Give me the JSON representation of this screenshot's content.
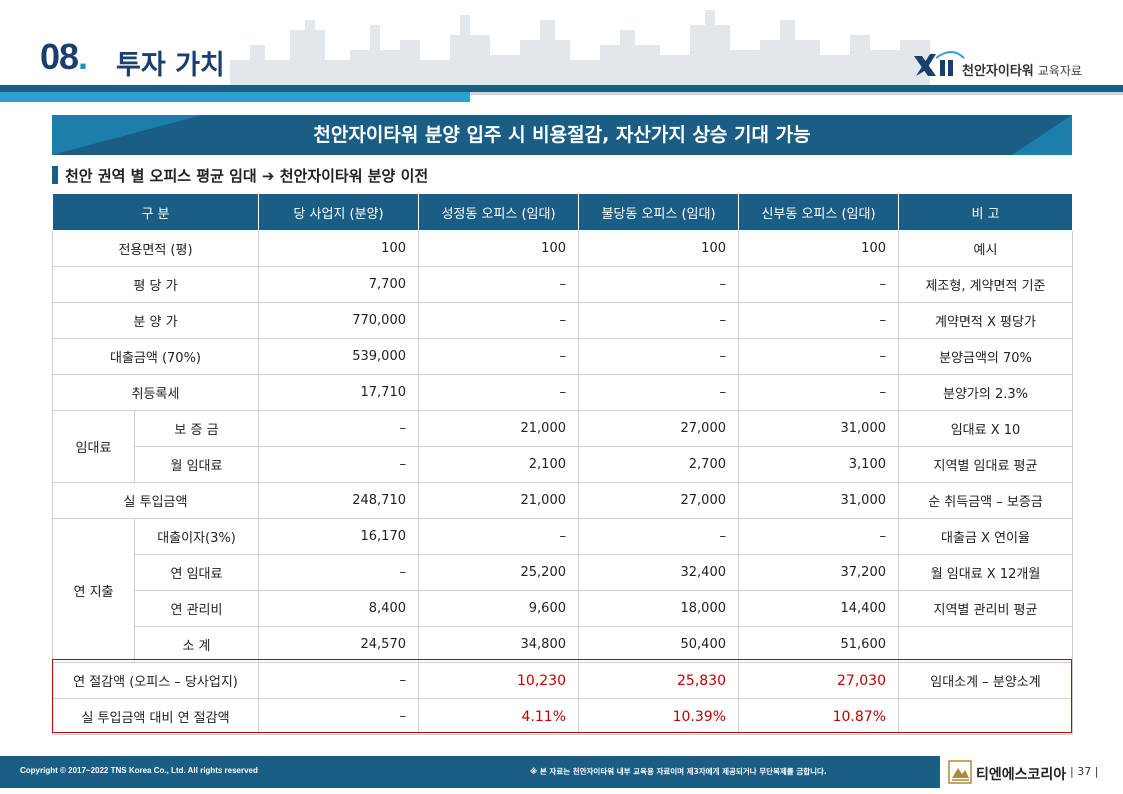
{
  "header": {
    "section_number": "08",
    "section_dot": ".",
    "section_title": "투자 가치",
    "brand": "천안자이타워",
    "brand_sub": "교육자료"
  },
  "banner": {
    "text": "천안자이타워 분양 입주 시 비용절감, 자산가지 상승 기대 가능"
  },
  "subheading": {
    "text": "천안 권역 별 오피스 평균 임대 ➔ 천안자이타워 분양 이전"
  },
  "table": {
    "headers": [
      "구  분",
      "당 사업지 (분양)",
      "성정동 오피스 (임대)",
      "불당동 오피스 (임대)",
      "신부동 오피스 (임대)",
      "비 고"
    ],
    "rows": [
      {
        "label": "전용면적 (평)",
        "values": [
          "100",
          "100",
          "100",
          "100"
        ],
        "note": "예시"
      },
      {
        "label": "평 당 가",
        "values": [
          "7,700",
          "–",
          "–",
          "–"
        ],
        "note": "제조형, 계약면적 기준"
      },
      {
        "label": "분 양 가",
        "values": [
          "770,000",
          "–",
          "–",
          "–"
        ],
        "note": "계약면적 X 평당가"
      },
      {
        "label": "대출금액 (70%)",
        "values": [
          "539,000",
          "–",
          "–",
          "–"
        ],
        "note": "분양금액의 70%"
      },
      {
        "label": "취등록세",
        "values": [
          "17,710",
          "–",
          "–",
          "–"
        ],
        "note": "분양가의 2.3%"
      }
    ],
    "rent_group": {
      "label": "임대료",
      "rows": [
        {
          "label": "보 증 금",
          "values": [
            "–",
            "21,000",
            "27,000",
            "31,000"
          ],
          "note": "임대료 X 10"
        },
        {
          "label": "월 임대료",
          "values": [
            "–",
            "2,100",
            "2,700",
            "3,100"
          ],
          "note": "지역별 임대료 평균"
        }
      ]
    },
    "actual_investment": {
      "label": "실 투입금액",
      "values": [
        "248,710",
        "21,000",
        "27,000",
        "31,000"
      ],
      "note": "순 취득금액 – 보증금"
    },
    "annual_group": {
      "label": "연 지출",
      "rows": [
        {
          "label": "대출이자(3%)",
          "values": [
            "16,170",
            "–",
            "–",
            "–"
          ],
          "note": "대출금 X 연이율"
        },
        {
          "label": "연 임대료",
          "values": [
            "–",
            "25,200",
            "32,400",
            "37,200"
          ],
          "note": "월 임대료 X 12개월"
        },
        {
          "label": "연 관리비",
          "values": [
            "8,400",
            "9,600",
            "18,000",
            "14,400"
          ],
          "note": "지역별 관리비 평균"
        },
        {
          "label": "소   계",
          "values": [
            "24,570",
            "34,800",
            "50,400",
            "51,600"
          ],
          "note": ""
        }
      ]
    },
    "highlight_rows": [
      {
        "label": "연 절감액 (오피스 – 당사업지)",
        "values": [
          "–",
          "10,230",
          "25,830",
          "27,030"
        ],
        "note": "임대소계 – 분양소계"
      },
      {
        "label": "실 투입금액 대비 연 절감액",
        "values": [
          "–",
          "4.11%",
          "10.39%",
          "10.87%"
        ],
        "note": ""
      }
    ]
  },
  "footer": {
    "copyright": "Copyright © 2017~2022 TNS Korea Co., Ltd.  All rights reserved",
    "notice": "※ 본 자료는 천안자이타워 내부 교육용 자료이며 제3자에게 제공되거나 무단복제를 금합니다.",
    "company": "티엔에스코리아",
    "page": "|  37  |"
  },
  "colors": {
    "primary": "#1a5e86",
    "accent": "#2aa3cc",
    "highlight": "#c00000"
  }
}
